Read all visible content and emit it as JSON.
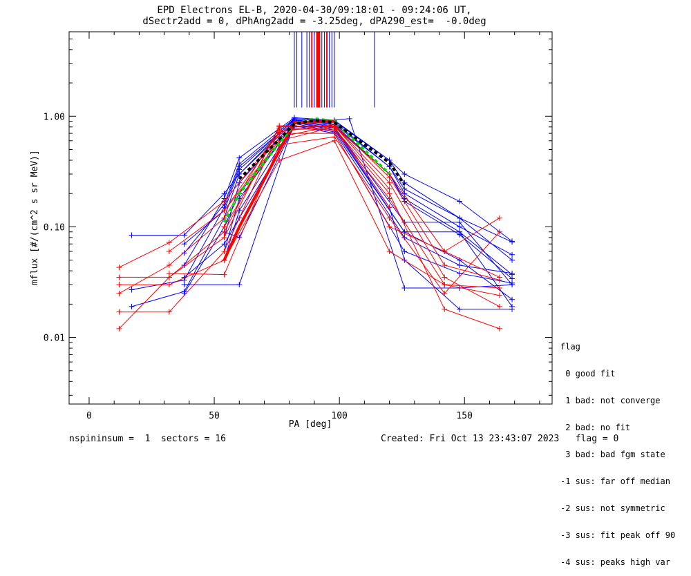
{
  "header": {
    "title_line1": "EPD Electrons EL-B, 2020-04-30/09:18:01 - 09:24:06 UT,",
    "title_line2": "dSectr2add = 0, dPhAng2add = -3.25deg, dPA290_est=  -0.0deg"
  },
  "footer": {
    "left": "nspininsum =  1  sectors = 16",
    "right": "Created: Fri Oct 13 23:43:07 2023   flag = 0"
  },
  "legend": {
    "title": "flag",
    "items": [
      " 0 good fit",
      " 1 bad: not converge",
      " 2 bad: no fit",
      " 3 bad: bad fgm state",
      "-1 sus: far off median",
      "-2 sus: not symmetric",
      "-3 sus: fit peak off 90",
      "-4 sus: peaks high var"
    ]
  },
  "colors": {
    "blue": "#0000ff",
    "red": "#ff0000",
    "green": "#00dd00",
    "black": "#000000"
  },
  "chart_data": {
    "type": "line",
    "title": "EPD Electrons EL-B, 2020-04-30/09:18:01 - 09:24:06 UT,",
    "xlabel": "PA [deg]",
    "ylabel": "mflux [#/(cm^2 s sr MeV)]",
    "xlim": [
      -8,
      185
    ],
    "ylim": [
      0.0025,
      5.8
    ],
    "yscale": "log",
    "xticks": [
      0,
      50,
      100,
      150
    ],
    "xtick_labels": [
      "0",
      "50",
      "100",
      "150"
    ],
    "yticks": [
      0.01,
      0.1,
      1.0
    ],
    "ytick_labels": [
      "0.01",
      "0.10",
      "1.00"
    ],
    "pa_bins": [
      12,
      17,
      32,
      38,
      54,
      60,
      76,
      82,
      98,
      104,
      120,
      126,
      142,
      148,
      164,
      169
    ],
    "vertical_markers": [
      {
        "x": 82,
        "color": "blue"
      },
      {
        "x": 83,
        "color": "blue"
      },
      {
        "x": 85,
        "color": "blue"
      },
      {
        "x": 87,
        "color": "blue"
      },
      {
        "x": 88,
        "color": "blue"
      },
      {
        "x": 89,
        "color": "red"
      },
      {
        "x": 90,
        "color": "blue"
      },
      {
        "x": 91,
        "color": "red"
      },
      {
        "x": 91.5,
        "color": "red"
      },
      {
        "x": 92,
        "color": "red"
      },
      {
        "x": 93,
        "color": "blue"
      },
      {
        "x": 94,
        "color": "blue"
      },
      {
        "x": 95,
        "color": "red"
      },
      {
        "x": 96,
        "color": "blue"
      },
      {
        "x": 97,
        "color": "blue"
      },
      {
        "x": 98,
        "color": "blue"
      },
      {
        "x": 114,
        "color": "blue"
      }
    ],
    "series": [
      {
        "color": "blue",
        "x": [
          17,
          38,
          54,
          60,
          82,
          98,
          120,
          126,
          148,
          169
        ],
        "y": [
          0.084,
          0.084,
          0.2,
          0.3,
          0.95,
          0.9,
          0.4,
          0.25,
          0.12,
          0.073
        ]
      },
      {
        "color": "blue",
        "x": [
          17,
          38,
          54,
          60,
          82,
          98,
          120,
          126,
          148,
          169
        ],
        "y": [
          0.027,
          0.033,
          0.15,
          0.35,
          0.92,
          0.85,
          0.35,
          0.2,
          0.1,
          0.056
        ]
      },
      {
        "color": "blue",
        "x": [
          17,
          38,
          54,
          60,
          82,
          98,
          120,
          126,
          148,
          169
        ],
        "y": [
          0.019,
          0.026,
          0.12,
          0.3,
          0.9,
          0.82,
          0.3,
          0.18,
          0.09,
          0.037
        ]
      },
      {
        "color": "blue",
        "x": [
          38,
          60,
          82,
          98,
          126,
          148,
          169
        ],
        "y": [
          0.03,
          0.03,
          0.88,
          0.75,
          0.09,
          0.09,
          0.019
        ]
      },
      {
        "color": "blue",
        "x": [
          38,
          54,
          60,
          82,
          98,
          120,
          126,
          148,
          169
        ],
        "y": [
          0.045,
          0.18,
          0.42,
          0.97,
          0.92,
          0.4,
          0.3,
          0.17,
          0.074
        ]
      },
      {
        "color": "blue",
        "x": [
          38,
          54,
          60,
          82,
          98,
          120,
          126,
          148,
          169
        ],
        "y": [
          0.058,
          0.16,
          0.37,
          0.95,
          0.88,
          0.35,
          0.22,
          0.12,
          0.05
        ]
      },
      {
        "color": "blue",
        "x": [
          38,
          54,
          60,
          82,
          98,
          120,
          126,
          148,
          169
        ],
        "y": [
          0.07,
          0.14,
          0.33,
          0.93,
          0.84,
          0.3,
          0.17,
          0.085,
          0.034
        ]
      },
      {
        "color": "blue",
        "x": [
          38,
          54,
          60,
          82,
          104,
          126,
          148,
          169
        ],
        "y": [
          0.025,
          0.1,
          0.2,
          0.85,
          0.95,
          0.028,
          0.028,
          0.03
        ]
      },
      {
        "color": "blue",
        "x": [
          38,
          54,
          60,
          82,
          98,
          120,
          126,
          148,
          169
        ],
        "y": [
          0.035,
          0.07,
          0.12,
          0.8,
          0.8,
          0.15,
          0.05,
          0.018,
          0.018
        ]
      },
      {
        "color": "blue",
        "x": [
          54,
          60,
          82,
          98,
          126,
          148,
          169
        ],
        "y": [
          0.08,
          0.25,
          0.9,
          0.8,
          0.11,
          0.11,
          0.03
        ]
      },
      {
        "color": "blue",
        "x": [
          54,
          60,
          82,
          98,
          126,
          148,
          169
        ],
        "y": [
          0.06,
          0.18,
          0.88,
          0.78,
          0.09,
          0.05,
          0.022
        ]
      },
      {
        "color": "blue",
        "x": [
          54,
          60,
          82,
          98,
          126,
          148,
          169
        ],
        "y": [
          0.05,
          0.14,
          0.86,
          0.72,
          0.08,
          0.045,
          0.038
        ]
      },
      {
        "color": "blue",
        "x": [
          54,
          60,
          82,
          98,
          126,
          148,
          169
        ],
        "y": [
          0.09,
          0.08,
          0.82,
          0.7,
          0.06,
          0.038,
          0.031
        ]
      },
      {
        "color": "red",
        "x": [
          12,
          32,
          54,
          76,
          98,
          120,
          142,
          164
        ],
        "y": [
          0.012,
          0.035,
          0.08,
          0.82,
          0.8,
          0.3,
          0.06,
          0.12
        ]
      },
      {
        "color": "red",
        "x": [
          12,
          32,
          54,
          76,
          98,
          120,
          142,
          164
        ],
        "y": [
          0.017,
          0.017,
          0.06,
          0.75,
          0.78,
          0.2,
          0.018,
          0.012
        ]
      },
      {
        "color": "red",
        "x": [
          12,
          32,
          54,
          76,
          98,
          120,
          142,
          164
        ],
        "y": [
          0.035,
          0.035,
          0.09,
          0.8,
          0.82,
          0.25,
          0.035,
          0.019
        ]
      },
      {
        "color": "red",
        "x": [
          12,
          32,
          54,
          76,
          98,
          120,
          142,
          164
        ],
        "y": [
          0.025,
          0.045,
          0.12,
          0.78,
          0.75,
          0.18,
          0.03,
          0.028
        ]
      },
      {
        "color": "red",
        "x": [
          12,
          32,
          54,
          76,
          98,
          120,
          142,
          164
        ],
        "y": [
          0.043,
          0.072,
          0.17,
          0.7,
          0.7,
          0.1,
          0.06,
          0.035
        ]
      },
      {
        "color": "red",
        "x": [
          12,
          32,
          54,
          76,
          98,
          120,
          142,
          164
        ],
        "y": [
          0.03,
          0.03,
          0.05,
          0.4,
          0.6,
          0.06,
          0.03,
          0.024
        ]
      },
      {
        "color": "red",
        "x": [
          32,
          54,
          76,
          98,
          120,
          142,
          164
        ],
        "y": [
          0.06,
          0.14,
          0.72,
          0.85,
          0.28,
          0.045,
          0.033
        ]
      },
      {
        "color": "red",
        "x": [
          32,
          54,
          76,
          98,
          120,
          142,
          164
        ],
        "y": [
          0.038,
          0.037,
          0.55,
          0.65,
          0.12,
          0.025,
          0.09
        ]
      },
      {
        "color": "red",
        "x": [
          54,
          76,
          98,
          120
        ],
        "y": [
          0.1,
          0.65,
          0.82,
          0.22
        ]
      },
      {
        "color": "red",
        "x": [
          54,
          76,
          98,
          120
        ],
        "y": [
          0.14,
          0.6,
          0.8,
          0.15
        ]
      }
    ],
    "overlays": [
      {
        "color": "red",
        "style": "solid",
        "width": 4,
        "x": [
          54,
          60,
          82,
          98
        ],
        "y": [
          0.05,
          0.1,
          0.88,
          0.9
        ]
      },
      {
        "color": "green",
        "style": "dashed",
        "width": 4,
        "x": [
          54,
          60,
          82,
          90,
          98,
          120
        ],
        "y": [
          0.11,
          0.2,
          0.85,
          0.95,
          0.9,
          0.3
        ]
      },
      {
        "color": "black",
        "style": "dashed",
        "width": 4,
        "x": [
          60,
          82,
          90,
          98,
          120,
          126
        ],
        "y": [
          0.27,
          0.85,
          0.92,
          0.88,
          0.38,
          0.24
        ]
      }
    ]
  }
}
